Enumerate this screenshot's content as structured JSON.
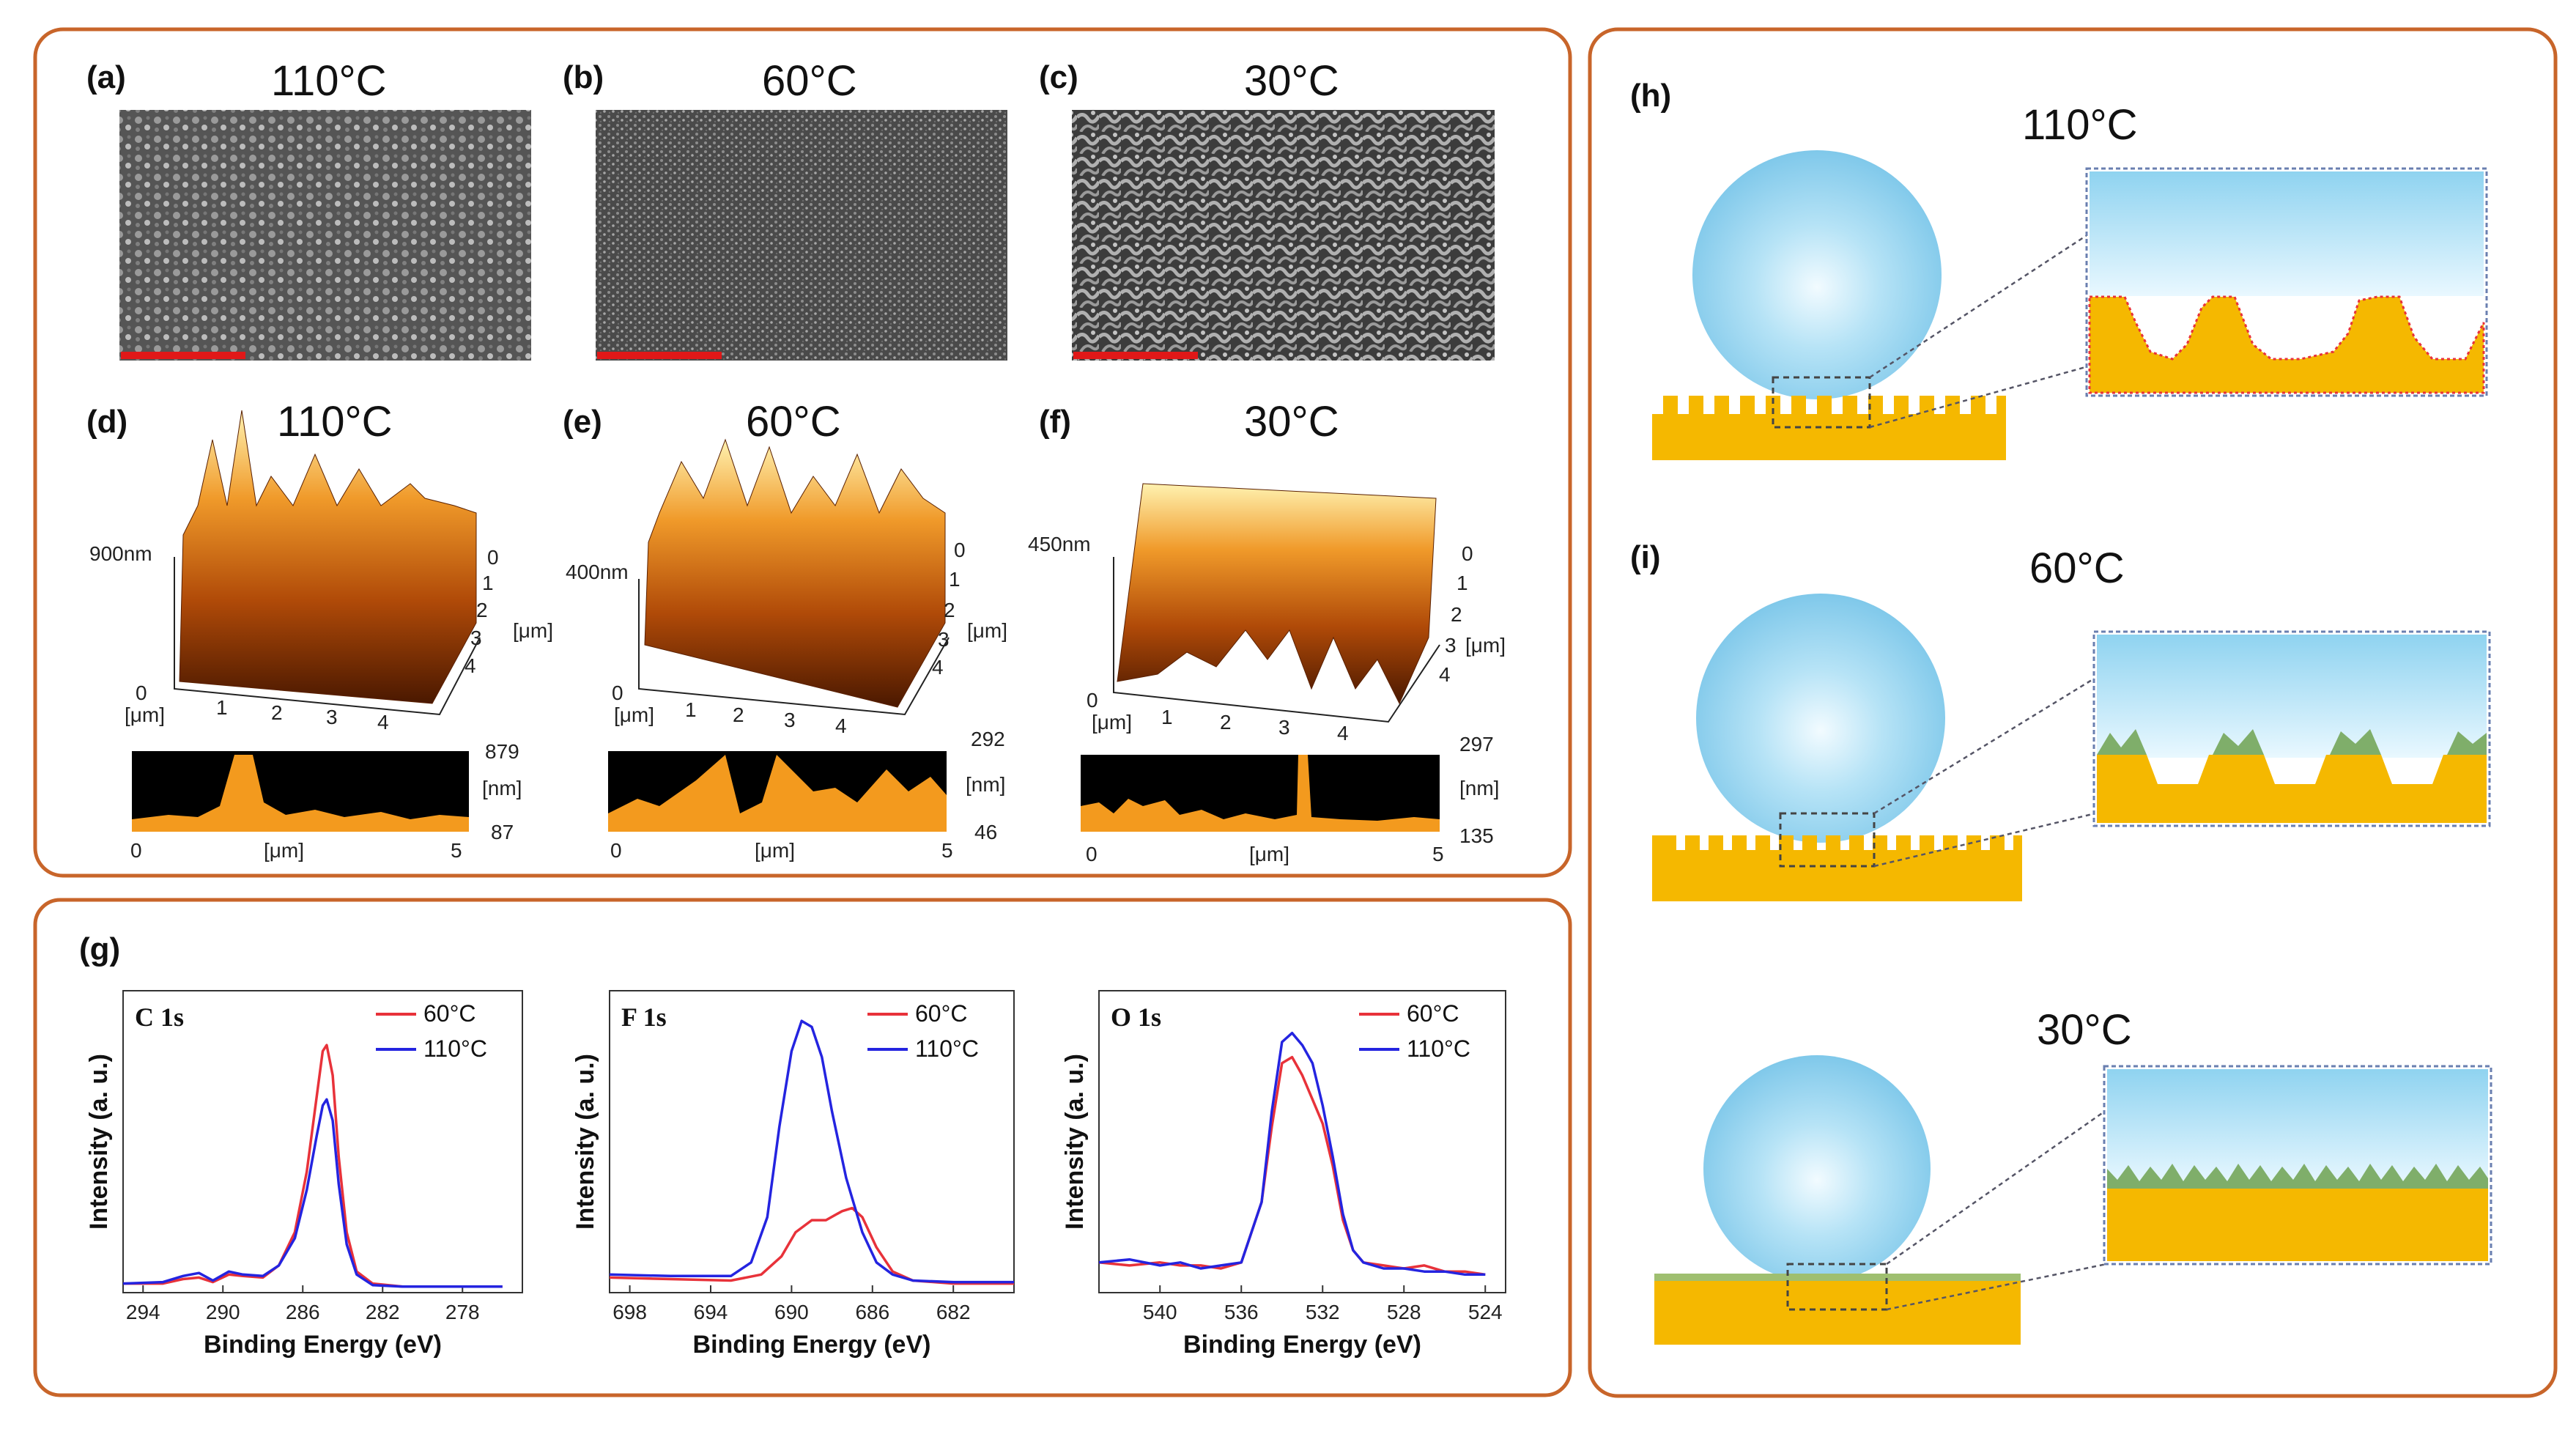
{
  "panels": {
    "a": {
      "label": "(a)",
      "temp": "110°C"
    },
    "b": {
      "label": "(b)",
      "temp": "60°C"
    },
    "c": {
      "label": "(c)",
      "temp": "30°C"
    },
    "d": {
      "label": "(d)",
      "temp": "110°C",
      "zmax": "900nm",
      "profile_max": "879",
      "profile_min": "87"
    },
    "e": {
      "label": "(e)",
      "temp": "60°C",
      "zmax": "400nm",
      "profile_max": "292",
      "profile_min": "46"
    },
    "f": {
      "label": "(f)",
      "temp": "30°C",
      "zmax": "450nm",
      "profile_max": "297",
      "profile_min": "135"
    },
    "g": {
      "label": "(g)"
    },
    "h": {
      "label": "(h)",
      "temp": "110°C"
    },
    "i": {
      "label": "(i)",
      "temp": "60°C"
    },
    "j": {
      "temp": "30°C"
    }
  },
  "afm_axis": {
    "unit": "[μm]",
    "nm_unit": "[nm]",
    "zero": "0",
    "x_ticks": [
      "1",
      "2",
      "3",
      "4"
    ],
    "y_ticks": [
      "0",
      "1",
      "2",
      "3",
      "4"
    ],
    "profile_x": [
      "0",
      "[μm]",
      "5"
    ]
  },
  "colors": {
    "red": "#e8323a",
    "blue": "#2424e0",
    "frame": "#c8652a",
    "gold": "#f5b800",
    "water": "#9fd8f0",
    "green": "#7fae6a"
  },
  "chart_data": [
    {
      "type": "line",
      "title": "C 1s",
      "xlabel": "Binding Energy (eV)",
      "ylabel": "Intensity (a. u.)",
      "xlim": [
        295,
        275
      ],
      "x_ticks": [
        294,
        290,
        286,
        282,
        278
      ],
      "ylim": [
        0,
        1.0
      ],
      "series": [
        {
          "name": "60°C",
          "color": "#e8323a",
          "x": [
            295,
            293,
            292,
            291.2,
            290.5,
            289.7,
            289,
            288,
            287.2,
            286.4,
            285.8,
            285.3,
            285,
            284.8,
            284.5,
            284.2,
            283.8,
            283.3,
            282.5,
            281,
            278,
            276
          ],
          "y": [
            0.03,
            0.03,
            0.045,
            0.05,
            0.035,
            0.06,
            0.055,
            0.05,
            0.09,
            0.2,
            0.4,
            0.65,
            0.8,
            0.82,
            0.72,
            0.45,
            0.2,
            0.07,
            0.03,
            0.02,
            0.02,
            0.02
          ]
        },
        {
          "name": "110°C",
          "color": "#2424e0",
          "x": [
            295,
            293,
            292,
            291.2,
            290.5,
            289.7,
            289,
            288,
            287.2,
            286.4,
            285.8,
            285.3,
            285,
            284.8,
            284.5,
            284.2,
            283.8,
            283.3,
            282.5,
            281,
            278,
            276
          ],
          "y": [
            0.03,
            0.035,
            0.055,
            0.065,
            0.04,
            0.07,
            0.06,
            0.055,
            0.09,
            0.18,
            0.34,
            0.52,
            0.62,
            0.64,
            0.57,
            0.36,
            0.16,
            0.06,
            0.025,
            0.02,
            0.02,
            0.02
          ]
        }
      ]
    },
    {
      "type": "line",
      "title": "F 1s",
      "xlabel": "Binding Energy (eV)",
      "ylabel": "Intensity (a. u.)",
      "xlim": [
        699,
        679
      ],
      "x_ticks": [
        698,
        694,
        690,
        686,
        682
      ],
      "ylim": [
        0,
        1.0
      ],
      "series": [
        {
          "name": "60°C",
          "color": "#e8323a",
          "x": [
            699,
            696,
            693,
            691.5,
            690.5,
            689.8,
            689,
            688.3,
            687.5,
            687,
            686.5,
            685.8,
            685,
            684,
            682,
            679
          ],
          "y": [
            0.05,
            0.045,
            0.04,
            0.06,
            0.12,
            0.2,
            0.24,
            0.24,
            0.27,
            0.28,
            0.25,
            0.15,
            0.07,
            0.04,
            0.03,
            0.03
          ]
        },
        {
          "name": "110°C",
          "color": "#2424e0",
          "x": [
            699,
            696,
            693,
            692,
            691.2,
            690.6,
            690,
            689.5,
            689,
            688.5,
            688,
            687.3,
            686.5,
            685.8,
            685,
            684,
            682,
            679
          ],
          "y": [
            0.06,
            0.055,
            0.055,
            0.1,
            0.25,
            0.55,
            0.8,
            0.9,
            0.88,
            0.78,
            0.6,
            0.38,
            0.2,
            0.1,
            0.06,
            0.04,
            0.035,
            0.035
          ]
        }
      ]
    },
    {
      "type": "line",
      "title": "O 1s",
      "xlabel": "Binding Energy (eV)",
      "ylabel": "Intensity (a. u.)",
      "xlim": [
        543,
        523
      ],
      "x_ticks": [
        540,
        536,
        532,
        528,
        524
      ],
      "ylim": [
        0,
        1.0
      ],
      "series": [
        {
          "name": "60°C",
          "color": "#e8323a",
          "x": [
            543,
            541.5,
            540,
            539,
            538,
            537,
            536,
            535,
            534.5,
            534,
            533.5,
            533,
            532.5,
            532,
            531.5,
            531,
            530.5,
            530,
            529,
            528,
            527,
            526,
            525,
            524
          ],
          "y": [
            0.1,
            0.09,
            0.1,
            0.09,
            0.09,
            0.08,
            0.1,
            0.3,
            0.55,
            0.76,
            0.78,
            0.72,
            0.64,
            0.56,
            0.42,
            0.24,
            0.14,
            0.1,
            0.09,
            0.08,
            0.09,
            0.07,
            0.07,
            0.06
          ]
        },
        {
          "name": "110°C",
          "color": "#2424e0",
          "x": [
            543,
            541.5,
            540,
            539,
            538,
            537,
            536,
            535,
            534.5,
            534,
            533.5,
            533,
            532.5,
            532,
            531.5,
            531,
            530.5,
            530,
            529,
            528,
            527,
            526,
            525,
            524
          ],
          "y": [
            0.1,
            0.11,
            0.09,
            0.1,
            0.08,
            0.09,
            0.1,
            0.3,
            0.6,
            0.83,
            0.86,
            0.82,
            0.76,
            0.62,
            0.45,
            0.26,
            0.14,
            0.1,
            0.08,
            0.08,
            0.07,
            0.07,
            0.06,
            0.06
          ]
        }
      ]
    }
  ]
}
